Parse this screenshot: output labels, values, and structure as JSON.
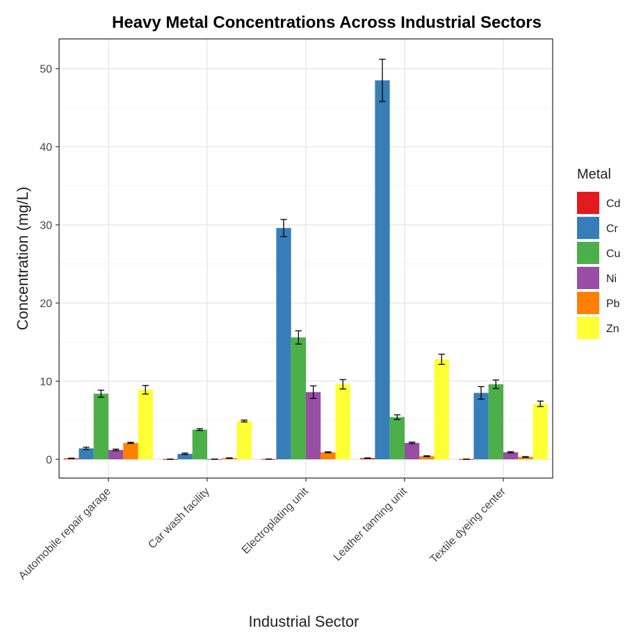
{
  "chart_data": {
    "type": "bar",
    "title": "Heavy Metal Concentrations Across Industrial Sectors",
    "xlabel": "Industrial Sector",
    "ylabel": "Concentration (mg/L)",
    "ylim": [
      -2.4,
      53.8
    ],
    "yticks": [
      0,
      10,
      20,
      30,
      40,
      50
    ],
    "grid": true,
    "legend_position": "right",
    "legend_title": "Metal",
    "categories": [
      "Automobile repair garage",
      "Car wash facility",
      "Electroplating unit",
      "Leather tanning unit",
      "Textile dyeing center"
    ],
    "series": [
      {
        "name": "Cd",
        "color": "#e41a1c",
        "values": [
          0.12,
          0.02,
          0.03,
          0.15,
          0.02
        ],
        "errors": [
          0.03,
          0.01,
          0.01,
          0.03,
          0.01
        ]
      },
      {
        "name": "Cr",
        "color": "#377eb8",
        "values": [
          1.4,
          0.7,
          29.6,
          48.5,
          8.5
        ],
        "errors": [
          0.15,
          0.1,
          1.1,
          2.7,
          0.8
        ]
      },
      {
        "name": "Cu",
        "color": "#4daf4a",
        "values": [
          8.4,
          3.8,
          15.6,
          5.4,
          9.6
        ],
        "errors": [
          0.45,
          0.12,
          0.85,
          0.3,
          0.55
        ]
      },
      {
        "name": "Ni",
        "color": "#984ea3",
        "values": [
          1.2,
          0.02,
          8.6,
          2.1,
          0.9
        ],
        "errors": [
          0.1,
          0.01,
          0.8,
          0.1,
          0.08
        ]
      },
      {
        "name": "Pb",
        "color": "#ff7f00",
        "values": [
          2.1,
          0.15,
          0.9,
          0.4,
          0.3
        ],
        "errors": [
          0.08,
          0.03,
          0.06,
          0.05,
          0.04
        ]
      },
      {
        "name": "Zn",
        "color": "#ffff33",
        "values": [
          8.9,
          4.9,
          9.6,
          12.8,
          7.1
        ],
        "errors": [
          0.55,
          0.12,
          0.6,
          0.65,
          0.35
        ]
      }
    ]
  }
}
